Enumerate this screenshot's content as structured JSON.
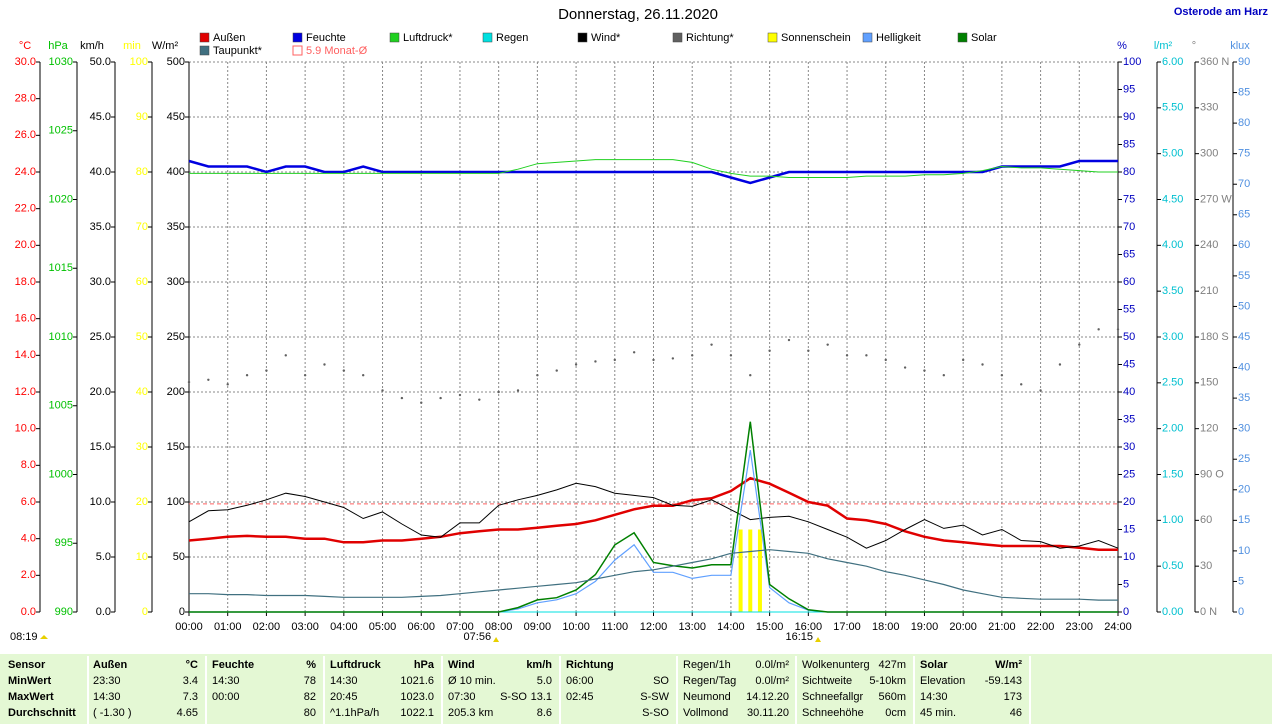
{
  "chart_data": {
    "type": "line",
    "title": "Donnerstag, 26.11.2020",
    "location": "Osterode am Harz",
    "grid": true,
    "xlim": [
      0,
      24
    ],
    "xticks": [
      {
        "value": 0,
        "label": "00:00"
      },
      {
        "value": 1,
        "label": "01:00"
      },
      {
        "value": 2,
        "label": "02:00"
      },
      {
        "value": 3,
        "label": "03:00"
      },
      {
        "value": 4,
        "label": "04:00"
      },
      {
        "value": 5,
        "label": "05:00"
      },
      {
        "value": 6,
        "label": "06:00"
      },
      {
        "value": 7,
        "label": "07:00"
      },
      {
        "value": 8,
        "label": "08:00"
      },
      {
        "value": 9,
        "label": "09:00"
      },
      {
        "value": 10,
        "label": "10:00"
      },
      {
        "value": 11,
        "label": "11:00"
      },
      {
        "value": 12,
        "label": "12:00"
      },
      {
        "value": 13,
        "label": "13:00"
      },
      {
        "value": 14,
        "label": "14:00"
      },
      {
        "value": 15,
        "label": "15:00"
      },
      {
        "value": 16,
        "label": "16:00"
      },
      {
        "value": 17,
        "label": "17:00"
      },
      {
        "value": 18,
        "label": "18:00"
      },
      {
        "value": 19,
        "label": "19:00"
      },
      {
        "value": 20,
        "label": "20:00"
      },
      {
        "value": 21,
        "label": "21:00"
      },
      {
        "value": 22,
        "label": "22:00"
      },
      {
        "value": 23,
        "label": "23:00"
      },
      {
        "value": 24,
        "label": "24:00"
      }
    ],
    "y_axes": [
      {
        "unit": "°C",
        "color": "#ff0000",
        "side": "left",
        "lim": [
          0,
          30
        ],
        "ticks": [
          {
            "value": 0,
            "label": "0.0"
          },
          {
            "value": 2,
            "label": "2.0"
          },
          {
            "value": 4,
            "label": "4.0"
          },
          {
            "value": 6,
            "label": "6.0"
          },
          {
            "value": 8,
            "label": "8.0"
          },
          {
            "value": 10,
            "label": "10.0"
          },
          {
            "value": 12,
            "label": "12.0"
          },
          {
            "value": 14,
            "label": "14.0"
          },
          {
            "value": 16,
            "label": "16.0"
          },
          {
            "value": 18,
            "label": "18.0"
          },
          {
            "value": 20,
            "label": "20.0"
          },
          {
            "value": 22,
            "label": "22.0"
          },
          {
            "value": 24,
            "label": "24.0"
          },
          {
            "value": 26,
            "label": "26.0"
          },
          {
            "value": 28,
            "label": "28.0"
          },
          {
            "value": 30,
            "label": "30.0"
          }
        ]
      },
      {
        "unit": "hPa",
        "color": "#00c000",
        "side": "left",
        "lim": [
          990,
          1030
        ],
        "ticks": [
          990,
          995,
          1000,
          1005,
          1010,
          1015,
          1020,
          1025,
          1030
        ]
      },
      {
        "unit": "km/h",
        "color": "#000000",
        "side": "left",
        "lim": [
          0,
          50
        ],
        "ticks": [
          {
            "value": 0,
            "label": "0.0"
          },
          {
            "value": 5,
            "label": "5.0"
          },
          {
            "value": 10,
            "label": "10.0"
          },
          {
            "value": 15,
            "label": "15.0"
          },
          {
            "value": 20,
            "label": "20.0"
          },
          {
            "value": 25,
            "label": "25.0"
          },
          {
            "value": 30,
            "label": "30.0"
          },
          {
            "value": 35,
            "label": "35.0"
          },
          {
            "value": 40,
            "label": "40.0"
          },
          {
            "value": 45,
            "label": "45.0"
          },
          {
            "value": 50,
            "label": "50.0"
          }
        ]
      },
      {
        "unit": "min",
        "color": "#ffff00",
        "side": "left",
        "lim": [
          0,
          100
        ],
        "ticks": [
          0,
          10,
          20,
          30,
          40,
          50,
          60,
          70,
          80,
          90,
          100
        ]
      },
      {
        "unit": "W/m²",
        "color": "#000000",
        "side": "left",
        "lim": [
          0,
          500
        ],
        "ticks": [
          0,
          50,
          100,
          150,
          200,
          250,
          300,
          350,
          400,
          450,
          500
        ]
      },
      {
        "unit": "%",
        "color": "#0000c0",
        "side": "right",
        "lim": [
          0,
          100
        ],
        "ticks": [
          0,
          5,
          10,
          15,
          20,
          25,
          30,
          35,
          40,
          45,
          50,
          55,
          60,
          65,
          70,
          75,
          80,
          85,
          90,
          95,
          100
        ]
      },
      {
        "unit": "l/m²",
        "color": "#00c0d0",
        "side": "right",
        "lim": [
          0,
          6
        ],
        "ticks": [
          {
            "value": 0,
            "label": "0.00"
          },
          {
            "value": 0.5,
            "label": "0.50"
          },
          {
            "value": 1,
            "label": "1.00"
          },
          {
            "value": 1.5,
            "label": "1.50"
          },
          {
            "value": 2,
            "label": "2.00"
          },
          {
            "value": 2.5,
            "label": "2.50"
          },
          {
            "value": 3,
            "label": "3.00"
          },
          {
            "value": 3.5,
            "label": "3.50"
          },
          {
            "value": 4,
            "label": "4.00"
          },
          {
            "value": 4.5,
            "label": "4.50"
          },
          {
            "value": 5,
            "label": "5.00"
          },
          {
            "value": 5.5,
            "label": "5.50"
          },
          {
            "value": 6,
            "label": "6.00"
          }
        ]
      },
      {
        "unit": "°",
        "color": "#808080",
        "side": "right",
        "lim": [
          0,
          360
        ],
        "ticks": [
          {
            "value": 0,
            "label": "0 N"
          },
          30,
          60,
          {
            "value": 90,
            "label": "90 O"
          },
          120,
          150,
          {
            "value": 180,
            "label": "180 S"
          },
          210,
          240,
          {
            "value": 270,
            "label": "270 W"
          },
          300,
          330,
          {
            "value": 360,
            "label": "360 N"
          }
        ]
      },
      {
        "unit": "klux",
        "color": "#5090e0",
        "side": "right",
        "lim": [
          0,
          90
        ],
        "ticks": [
          0,
          5,
          10,
          15,
          20,
          25,
          30,
          35,
          40,
          45,
          50,
          55,
          60,
          65,
          70,
          75,
          80,
          85,
          90
        ]
      }
    ],
    "x": [
      0,
      0.5,
      1,
      1.5,
      2,
      2.5,
      3,
      3.5,
      4,
      4.5,
      5,
      5.5,
      6,
      6.5,
      7,
      7.5,
      8,
      8.5,
      9,
      9.5,
      10,
      10.5,
      11,
      11.5,
      12,
      12.5,
      13,
      13.5,
      14,
      14.5,
      15,
      15.5,
      16,
      16.5,
      17,
      17.5,
      18,
      18.5,
      19,
      19.5,
      20,
      20.5,
      21,
      21.5,
      22,
      22.5,
      23,
      23.5,
      24
    ],
    "series": [
      {
        "name": "Außen",
        "color": "#e00000",
        "axis": 0,
        "style": "line",
        "width": 2.5,
        "values": [
          3.9,
          4.0,
          4.1,
          4.15,
          4.1,
          4.1,
          4.0,
          4.0,
          3.8,
          3.8,
          3.9,
          3.9,
          4.0,
          4.1,
          4.3,
          4.4,
          4.5,
          4.5,
          4.6,
          4.7,
          4.8,
          5.0,
          5.3,
          5.6,
          5.8,
          5.8,
          6.1,
          6.2,
          6.6,
          7.3,
          7.0,
          6.5,
          6.0,
          5.8,
          5.1,
          5.0,
          4.8,
          4.4,
          4.1,
          3.9,
          3.8,
          3.7,
          3.6,
          3.6,
          3.6,
          3.6,
          3.5,
          3.4,
          3.4
        ]
      },
      {
        "name": "Feuchte",
        "color": "#0000e0",
        "axis": 5,
        "style": "line",
        "width": 2.5,
        "values": [
          82,
          81,
          81,
          81,
          80,
          81,
          81,
          80,
          80,
          81,
          80,
          80,
          80,
          80,
          80,
          80,
          80,
          80,
          80,
          80,
          80,
          80,
          80,
          80,
          80,
          80,
          80,
          80,
          79,
          78,
          79,
          80,
          80,
          80,
          80,
          80,
          80,
          80,
          80,
          80,
          80,
          80,
          81,
          81,
          81,
          81,
          82,
          82,
          82
        ]
      },
      {
        "name": "Luftdruck*",
        "color": "#20d020",
        "axis": 1,
        "style": "line",
        "width": 1,
        "values": [
          1021.9,
          1021.9,
          1021.9,
          1021.9,
          1021.9,
          1021.9,
          1021.9,
          1021.9,
          1021.9,
          1021.9,
          1021.9,
          1021.9,
          1021.9,
          1021.9,
          1021.9,
          1021.9,
          1021.9,
          1022.2,
          1022.6,
          1022.7,
          1022.8,
          1022.9,
          1022.9,
          1022.9,
          1022.9,
          1022.9,
          1022.7,
          1022.2,
          1021.9,
          1021.7,
          1021.7,
          1021.6,
          1021.6,
          1021.6,
          1021.6,
          1021.7,
          1021.7,
          1021.7,
          1021.8,
          1021.8,
          1021.9,
          1022.1,
          1022.4,
          1022.3,
          1022.3,
          1022.2,
          1022.1,
          1022.0,
          1022.0
        ]
      },
      {
        "name": "Regen",
        "color": "#00e0e0",
        "axis": 6,
        "style": "line",
        "width": 1,
        "values": [
          0,
          0,
          0,
          0,
          0,
          0,
          0,
          0,
          0,
          0,
          0,
          0,
          0,
          0,
          0,
          0,
          0,
          0,
          0,
          0,
          0,
          0,
          0,
          0,
          0,
          0,
          0,
          0,
          0,
          0,
          0,
          0,
          0,
          0,
          0,
          0,
          0,
          0,
          0,
          0,
          0,
          0,
          0,
          0,
          0,
          0,
          0,
          0,
          0
        ]
      },
      {
        "name": "Wind*",
        "color": "#000000",
        "axis": 2,
        "style": "line",
        "width": 1,
        "values": [
          8.2,
          9.2,
          9.3,
          9.7,
          10.2,
          10.8,
          10.5,
          10.0,
          9.5,
          8.5,
          9.1,
          8.0,
          7.0,
          6.8,
          8.1,
          8.1,
          9.7,
          10.2,
          10.6,
          11.1,
          11.7,
          11.4,
          10.8,
          10.6,
          10.4,
          9.7,
          9.6,
          10.2,
          9.3,
          8.4,
          8.6,
          8.7,
          8.2,
          7.5,
          6.8,
          5.8,
          6.5,
          7.5,
          8.4,
          7.6,
          7.9,
          7.0,
          7.5,
          6.5,
          6.4,
          5.8,
          6.0,
          6.5,
          5.8
        ]
      },
      {
        "name": "Richtung*",
        "color": "#606060",
        "axis": 7,
        "style": "dots",
        "width": 1,
        "values": [
          150.5,
          152,
          149,
          155,
          158,
          168,
          155,
          162,
          158,
          155,
          145,
          140,
          137,
          140,
          142,
          139,
          144,
          145,
          155,
          158,
          162,
          164,
          165,
          170,
          165,
          166,
          168,
          175,
          168,
          155,
          171,
          178,
          171,
          175,
          168,
          168,
          165,
          160,
          158,
          155,
          165,
          162,
          155,
          149,
          145,
          162,
          175,
          185,
          185
        ]
      },
      {
        "name": "Sonnenschein",
        "color": "#ffff00",
        "axis": 3,
        "style": "bars",
        "width": 4,
        "x": [
          14.25,
          14.5,
          14.75
        ],
        "values": [
          15,
          15,
          15
        ]
      },
      {
        "name": "Helligkeit",
        "color": "#60a0ff",
        "axis": 8,
        "style": "line",
        "width": 1.2,
        "values": [
          0,
          0,
          0,
          0,
          0,
          0,
          0,
          0,
          0,
          0,
          0,
          0,
          0,
          0,
          0,
          0,
          0,
          0.5,
          1.5,
          2,
          3,
          5,
          8.5,
          11,
          6.5,
          6.5,
          5.5,
          6,
          6,
          26.5,
          4,
          1.5,
          0.3,
          0,
          0,
          0,
          0,
          0,
          0,
          0,
          0,
          0,
          0,
          0,
          0,
          0,
          0,
          0,
          0
        ]
      },
      {
        "name": "Solar",
        "color": "#008000",
        "axis": 4,
        "style": "line",
        "width": 1.5,
        "values": [
          0,
          0,
          0,
          0,
          0,
          0,
          0,
          0,
          0,
          0,
          0,
          0,
          0,
          0,
          0,
          0,
          0,
          4,
          11,
          13,
          20,
          34,
          61,
          72,
          45,
          42,
          40,
          43,
          43,
          173,
          25,
          12,
          2,
          0,
          0,
          0,
          0,
          0,
          0,
          0,
          0,
          0,
          0,
          0,
          0,
          0,
          0,
          0,
          0
        ]
      },
      {
        "name": "Taupunkt*",
        "color": "#407080",
        "axis": 0,
        "style": "line",
        "width": 1.2,
        "values": [
          1.0,
          1.0,
          0.95,
          0.95,
          0.9,
          0.9,
          0.9,
          0.85,
          0.8,
          0.8,
          0.8,
          0.8,
          0.85,
          0.9,
          1.0,
          1.1,
          1.2,
          1.3,
          1.4,
          1.5,
          1.6,
          1.8,
          2.0,
          2.2,
          2.3,
          2.5,
          2.7,
          2.9,
          3.2,
          3.3,
          3.4,
          3.3,
          3.2,
          2.9,
          2.7,
          2.5,
          2.2,
          2.0,
          1.75,
          1.5,
          1.2,
          1.0,
          0.8,
          0.75,
          0.7,
          0.7,
          0.7,
          0.65,
          0.65
        ]
      }
    ],
    "reference": {
      "label": "5.9 Monat-Ø",
      "value": 5.9,
      "axis": 0,
      "color": "#ff6060"
    },
    "annotations": [
      {
        "text": "08:19"
      },
      {
        "text": "07:56",
        "x": 7.933
      },
      {
        "text": "16:15",
        "x": 16.25
      }
    ]
  },
  "table": {
    "rows": [
      [
        "Sensor",
        "Außen",
        "°C",
        "Feuchte",
        "%",
        "Luftdruck",
        "hPa",
        "Wind",
        null,
        "km/h",
        "Richtung",
        null,
        "Regen/1h",
        "0.0l/m²",
        "Wolkenunterg",
        "427m",
        "Solar",
        "W/m²"
      ],
      [
        "MinWert",
        "23:30",
        "3.4",
        "14:30",
        "78",
        "14:30",
        "1021.6",
        "Ø 10 min.",
        null,
        "5.0",
        "06:00",
        "SO",
        "Regen/Tag",
        "0.0l/m²",
        "Sichtweite",
        "5-10km",
        "Elevation",
        "-59.143"
      ],
      [
        "MaxWert",
        "14:30",
        "7.3",
        "00:00",
        "82",
        "20:45",
        "1023.0",
        "07:30",
        "S-SO",
        "13.1",
        "02:45",
        "S-SW",
        "Neumond",
        "14.12.20",
        "Schneefallgr",
        "560m",
        "14:30",
        "173"
      ],
      [
        "Durchschnitt",
        "( -1.30 )",
        "4.65",
        null,
        "80",
        "^1.1hPa/h",
        "1022.1",
        "205.3 km",
        null,
        "8.6",
        null,
        "S-SO",
        "Vollmond",
        "30.11.20",
        "Schneehöhe",
        "0cm",
        "45 min.",
        "46"
      ]
    ]
  }
}
